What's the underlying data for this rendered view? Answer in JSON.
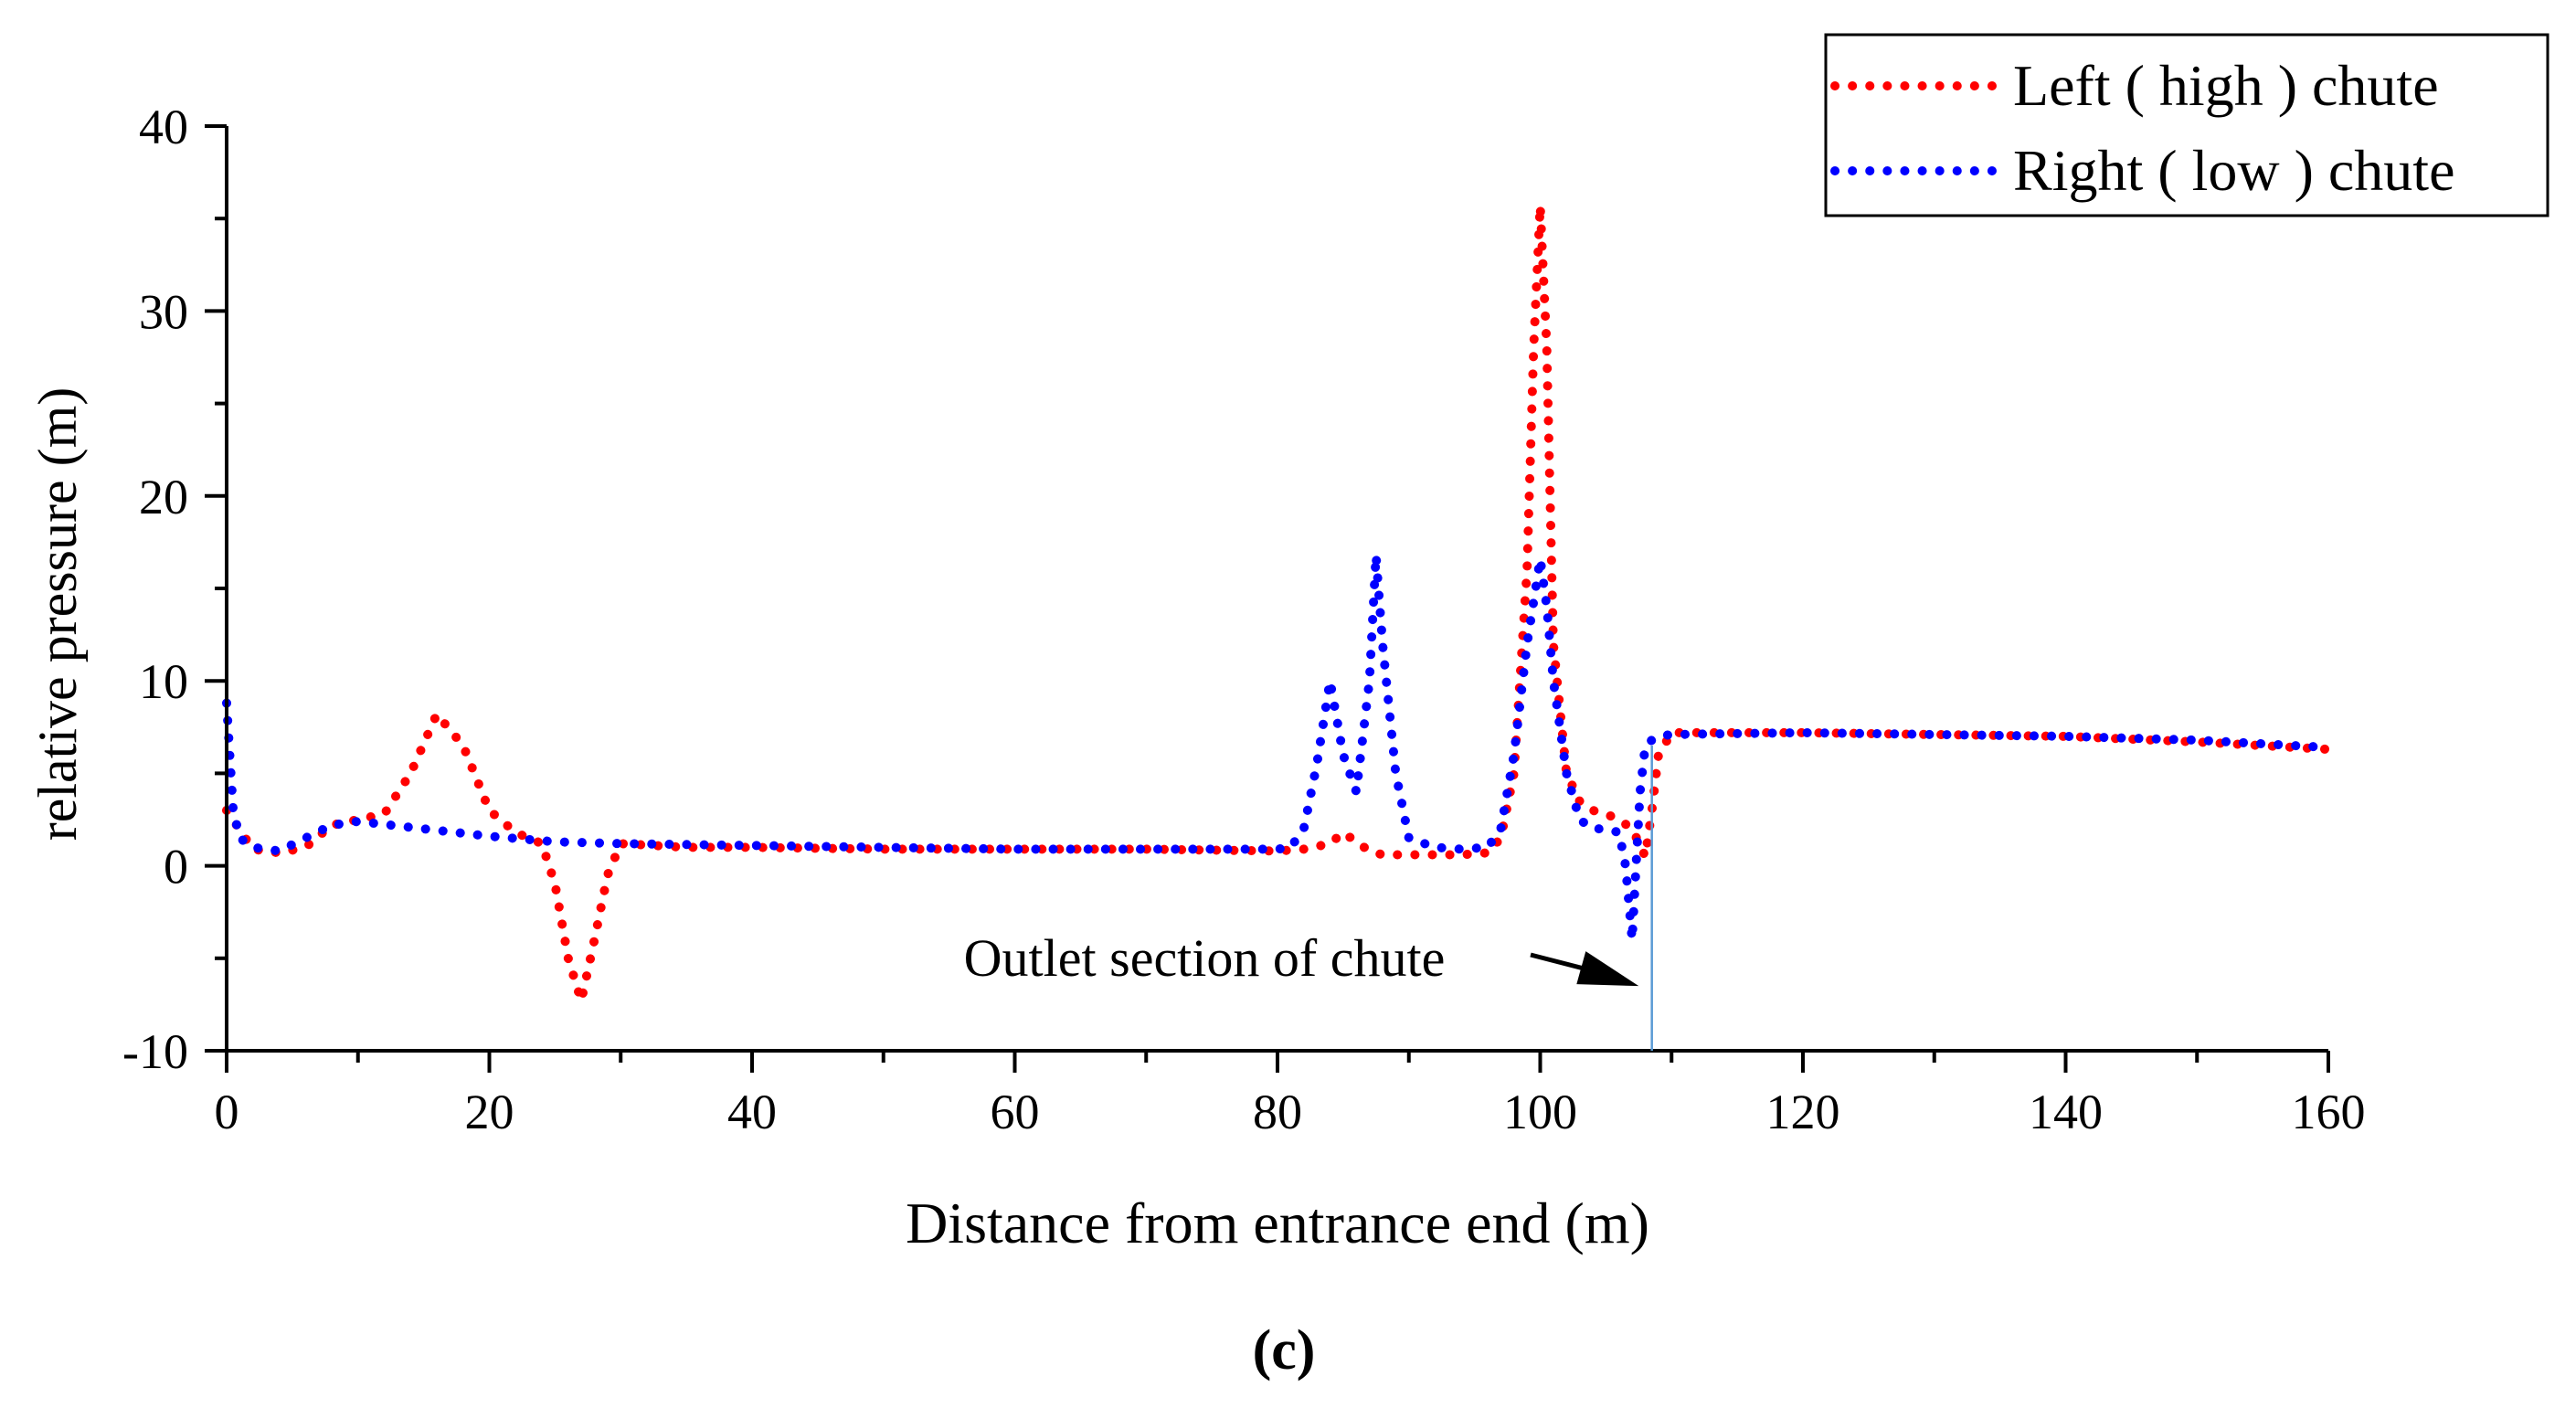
{
  "chart_data": {
    "type": "line",
    "title": "",
    "xlabel": "Distance from entrance end (m)",
    "ylabel": "relative pressure (m)",
    "xlim": [
      0,
      160
    ],
    "ylim": [
      -10,
      40
    ],
    "xticks": [
      0,
      20,
      40,
      60,
      80,
      100,
      120,
      140,
      160
    ],
    "yticks": [
      -10,
      0,
      10,
      20,
      30,
      40
    ],
    "xtick_labels": [
      "0",
      "20",
      "40",
      "60",
      "80",
      "100",
      "120",
      "140",
      "160"
    ],
    "ytick_labels": [
      "-10",
      "0",
      "10",
      "20",
      "30",
      "40"
    ],
    "grid": false,
    "legend_position": "top-right",
    "subfigure_label": "(c)",
    "annotation": {
      "text": "Outlet section of chute",
      "x": 108.5,
      "y_from": -10,
      "y_to": 6.5,
      "arrow_tip": [
        107.5,
        -6.5
      ]
    },
    "series": [
      {
        "name": "Left ( high ) chute",
        "color": "#ff0000",
        "x": [
          0,
          2,
          4,
          6,
          8,
          10,
          12,
          14,
          16,
          18,
          20,
          22,
          24,
          25,
          26,
          27,
          28,
          29,
          30,
          35,
          40,
          50,
          60,
          70,
          80,
          82,
          84,
          85,
          86,
          87,
          88,
          90,
          92,
          94,
          96,
          97,
          98,
          99,
          99.5,
          100,
          100.5,
          101,
          102,
          103,
          104,
          105,
          106,
          107,
          108,
          108.5,
          109,
          110,
          120,
          130,
          140,
          150,
          160
        ],
        "y": [
          3.0,
          0.9,
          0.7,
          1.0,
          2.2,
          2.5,
          2.8,
          5.0,
          8.2,
          6.5,
          3.0,
          1.8,
          1.2,
          -1.0,
          -5.0,
          -7.3,
          -4.0,
          -0.5,
          1.2,
          1.0,
          1.0,
          0.9,
          0.9,
          0.9,
          0.8,
          0.9,
          1.2,
          1.8,
          1.3,
          0.8,
          0.6,
          0.6,
          0.6,
          0.6,
          0.7,
          1.5,
          5.0,
          16.0,
          28.0,
          35.7,
          28.0,
          12.0,
          5.0,
          3.5,
          3.0,
          2.8,
          2.5,
          2.0,
          0.5,
          3.0,
          6.0,
          7.2,
          7.2,
          7.1,
          7.0,
          6.7,
          6.3
        ]
      },
      {
        "name": "Right ( low ) chute",
        "color": "#0000ff",
        "x": [
          0,
          0.5,
          1,
          2,
          4,
          6,
          8,
          10,
          15,
          20,
          25,
          30,
          40,
          50,
          60,
          70,
          80,
          81,
          82,
          83,
          84,
          85,
          86,
          87,
          87.5,
          88,
          89,
          90,
          92,
          94,
          96,
          97,
          98,
          99,
          100,
          100.5,
          101,
          102,
          103,
          104,
          105,
          106,
          106.5,
          107,
          107.3,
          107.6,
          108,
          108.5,
          109,
          110,
          120,
          130,
          140,
          150,
          160
        ],
        "y": [
          8.8,
          3.0,
          1.5,
          1.0,
          0.8,
          1.5,
          2.2,
          2.4,
          2.0,
          1.6,
          1.3,
          1.2,
          1.1,
          1.0,
          0.9,
          0.9,
          0.9,
          1.0,
          2.0,
          5.5,
          10.0,
          6.0,
          4.0,
          10.0,
          16.8,
          12.0,
          5.0,
          1.5,
          1.0,
          0.9,
          1.0,
          2.0,
          6.0,
          12.0,
          16.6,
          14.0,
          10.0,
          5.0,
          2.5,
          2.0,
          2.0,
          1.8,
          0.0,
          -4.0,
          0.0,
          4.0,
          6.5,
          6.8,
          7.0,
          7.1,
          7.2,
          7.1,
          7.0,
          6.8,
          6.4
        ]
      }
    ]
  }
}
